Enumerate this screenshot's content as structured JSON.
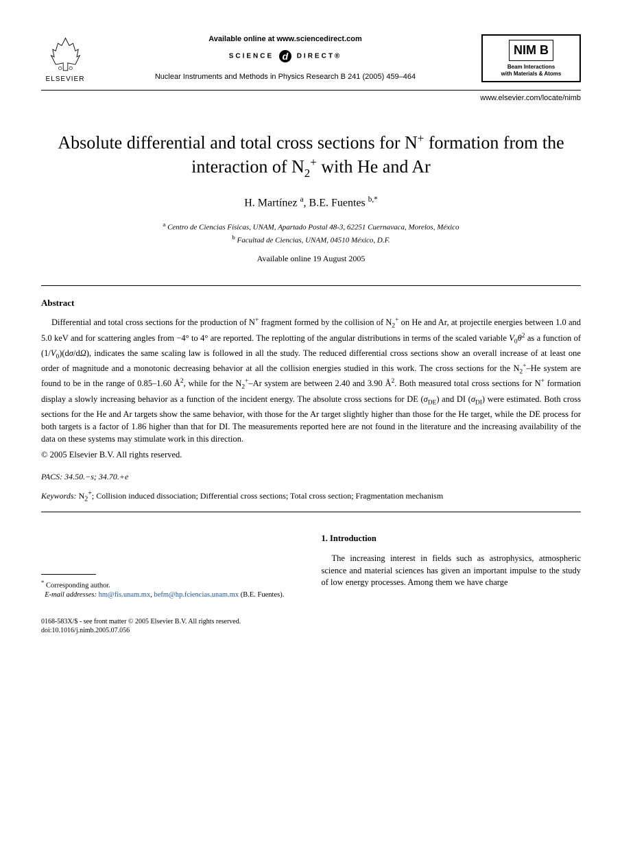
{
  "header": {
    "elsevier_label": "ELSEVIER",
    "available_online": "Available online at www.sciencedirect.com",
    "science_direct_pre": "SCIENCE",
    "science_direct_post": "DIRECT®",
    "journal_reference": "Nuclear Instruments and Methods in Physics Research B 241 (2005) 459–464",
    "nimb_logo": "NIM B",
    "nimb_sub1": "Beam Interactions",
    "nimb_sub2": "with Materials & Atoms",
    "url": "www.elsevier.com/locate/nimb"
  },
  "title_html": "Absolute differential and total cross sections for N<sup>+</sup> formation from the interaction of N<sub>2</sub><sup>+</sup> with He and Ar",
  "authors_html": "H. Martínez <sup>a</sup>, B.E. Fuentes <sup>b,*</sup>",
  "affiliations": {
    "a": "Centro de Ciencias Físicas, UNAM, Apartado Postal 48-3, 62251 Cuernavaca, Morelos, México",
    "b": "Facultad de Ciencias, UNAM, 04510 México, D.F."
  },
  "pub_date": "Available online 19 August 2005",
  "abstract": {
    "heading": "Abstract",
    "body_html": "Differential and total cross sections for the production of N<sup>+</sup> fragment formed by the collision of N<sub>2</sub><sup>+</sup> on He and Ar, at projectile energies between 1.0 and 5.0 keV and for scattering angles from −4° to 4° are reported. The replotting of the angular distributions in terms of the scaled variable <i>V</i><sub>0</sub><i>θ</i><sup>2</sup> as a function of (1/<i>V</i><sub>0</sub>)(d<i>σ</i>/d<i>Ω</i>), indicates the same scaling law is followed in all the study. The reduced differential cross sections show an overall increase of at least one order of magnitude and a monotonic decreasing behavior at all the collision energies studied in this work. The cross sections for the N<sub>2</sub><sup>+</sup>–He system are found to be in the range of 0.85–1.60 Å<sup>2</sup>, while for the N<sub>2</sub><sup>+</sup>–Ar system are between 2.40 and 3.90 Å<sup>2</sup>. Both measured total cross sections for N<sup>+</sup> formation display a slowly increasing behavior as a function of the incident energy. The absolute cross sections for DE (<i>σ</i><sub>DE</sub>) and DI (<i>σ</i><sub>DI</sub>) were estimated. Both cross sections for the He and Ar targets show the same behavior, with those for the Ar target slightly higher than those for the He target, while the DE process for both targets is a factor of 1.86 higher than that for DI. The measurements reported here are not found in the literature and the increasing availability of the data on these systems may stimulate work in this direction.",
    "copyright": "© 2005 Elsevier B.V. All rights reserved."
  },
  "pacs": {
    "label": "PACS:",
    "value": "34.50.−s; 34.70.+e"
  },
  "keywords": {
    "label": "Keywords:",
    "value_html": "N<sub>2</sub><sup>+</sup>; Collision induced dissociation; Differential cross sections; Total cross section; Fragmentation mechanism"
  },
  "introduction": {
    "heading": "1. Introduction",
    "text": "The increasing interest in fields such as astrophysics, atmospheric science and material sciences has given an important impulse to the study of low energy processes. Among them we have charge"
  },
  "footnote": {
    "corresponding": "Corresponding author.",
    "email_label": "E-mail addresses:",
    "email1": "hm@fis.unam.mx",
    "email2": "befm@hp.fciencias.unam.mx",
    "email_name": "(B.E. Fuentes)."
  },
  "bottom": {
    "issn_line": "0168-583X/$ - see front matter © 2005 Elsevier B.V. All rights reserved.",
    "doi": "doi:10.1016/j.nimb.2005.07.056"
  }
}
